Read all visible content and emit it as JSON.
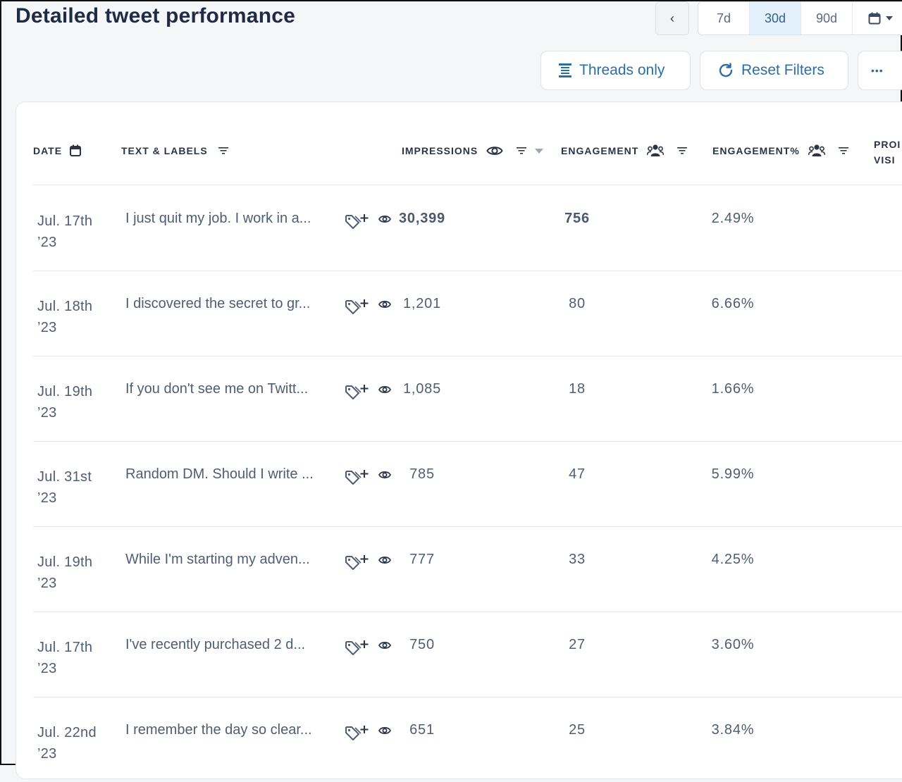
{
  "page_title": "Detailed tweet performance",
  "date_range": {
    "prev_label": "‹",
    "options": [
      "7d",
      "30d",
      "90d"
    ],
    "selected": "30d",
    "calendar_icon": "calendar-icon"
  },
  "actions": {
    "threads_label": "Threads only",
    "reset_label": "Reset Filters",
    "more_label": "•••"
  },
  "table": {
    "columns": {
      "date": "DATE",
      "text": "TEXT & LABELS",
      "impressions": "IMPRESSIONS",
      "engagement": "ENGAGEMENT",
      "engagement_pct": "ENGAGEMENT%",
      "profile_visits_line1": "PROI",
      "profile_visits_line2": "VISI"
    },
    "rows": [
      {
        "date_line1": "Jul. 17th",
        "date_line2": "’23",
        "text": "I just quit my job. I work in a...",
        "impressions": "30,399",
        "engagement": "756",
        "engagement_pct": "2.49%"
      },
      {
        "date_line1": "Jul. 18th",
        "date_line2": "’23",
        "text": "I discovered the secret to gr...",
        "impressions": "1,201",
        "engagement": "80",
        "engagement_pct": "6.66%"
      },
      {
        "date_line1": "Jul. 19th",
        "date_line2": "’23",
        "text": "If you don't see me on Twitt...",
        "impressions": "1,085",
        "engagement": "18",
        "engagement_pct": "1.66%"
      },
      {
        "date_line1": "Jul. 31st",
        "date_line2": "’23",
        "text": "Random DM. Should I write ...",
        "impressions": "785",
        "engagement": "47",
        "engagement_pct": "5.99%"
      },
      {
        "date_line1": "Jul. 19th",
        "date_line2": "’23",
        "text": "While I'm starting my adven...",
        "impressions": "777",
        "engagement": "33",
        "engagement_pct": "4.25%"
      },
      {
        "date_line1": "Jul. 17th",
        "date_line2": "’23",
        "text": "I've recently purchased 2 d...",
        "impressions": "750",
        "engagement": "27",
        "engagement_pct": "3.60%"
      },
      {
        "date_line1": "Jul. 22nd",
        "date_line2": "’23",
        "text": "I remember the day so clear...",
        "impressions": "651",
        "engagement": "25",
        "engagement_pct": "3.84%"
      }
    ]
  }
}
